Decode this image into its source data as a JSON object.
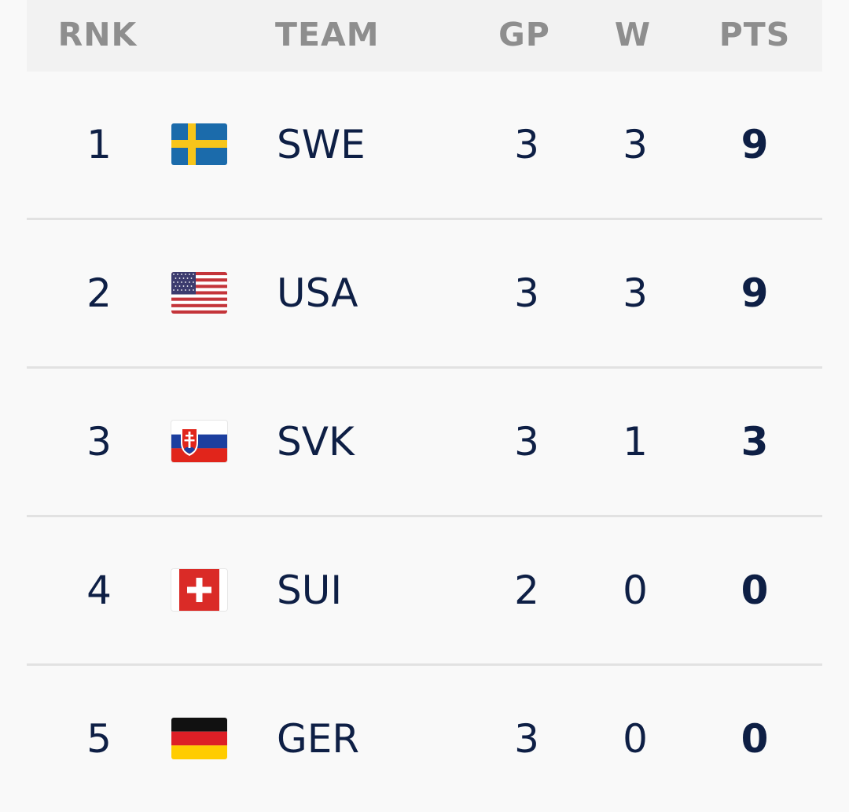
{
  "header": {
    "rank": "RNK",
    "team": "TEAM",
    "gp": "GP",
    "w": "W",
    "pts": "PTS"
  },
  "rows": [
    {
      "rank": "1",
      "team": "SWE",
      "flag": "sweden-flag-icon",
      "gp": "3",
      "w": "3",
      "pts": "9"
    },
    {
      "rank": "2",
      "team": "USA",
      "flag": "usa-flag-icon",
      "gp": "3",
      "w": "3",
      "pts": "9"
    },
    {
      "rank": "3",
      "team": "SVK",
      "flag": "slovakia-flag-icon",
      "gp": "3",
      "w": "1",
      "pts": "3"
    },
    {
      "rank": "4",
      "team": "SUI",
      "flag": "switzerland-flag-icon",
      "gp": "2",
      "w": "0",
      "pts": "0"
    },
    {
      "rank": "5",
      "team": "GER",
      "flag": "germany-flag-icon",
      "gp": "3",
      "w": "0",
      "pts": "0"
    }
  ],
  "colors": {
    "header_bg": "#f2f2f2",
    "header_text": "#8e8e8e",
    "row_text": "#0e1f45",
    "divider": "#e2e2e2",
    "page_bg": "#f9f9f9"
  }
}
